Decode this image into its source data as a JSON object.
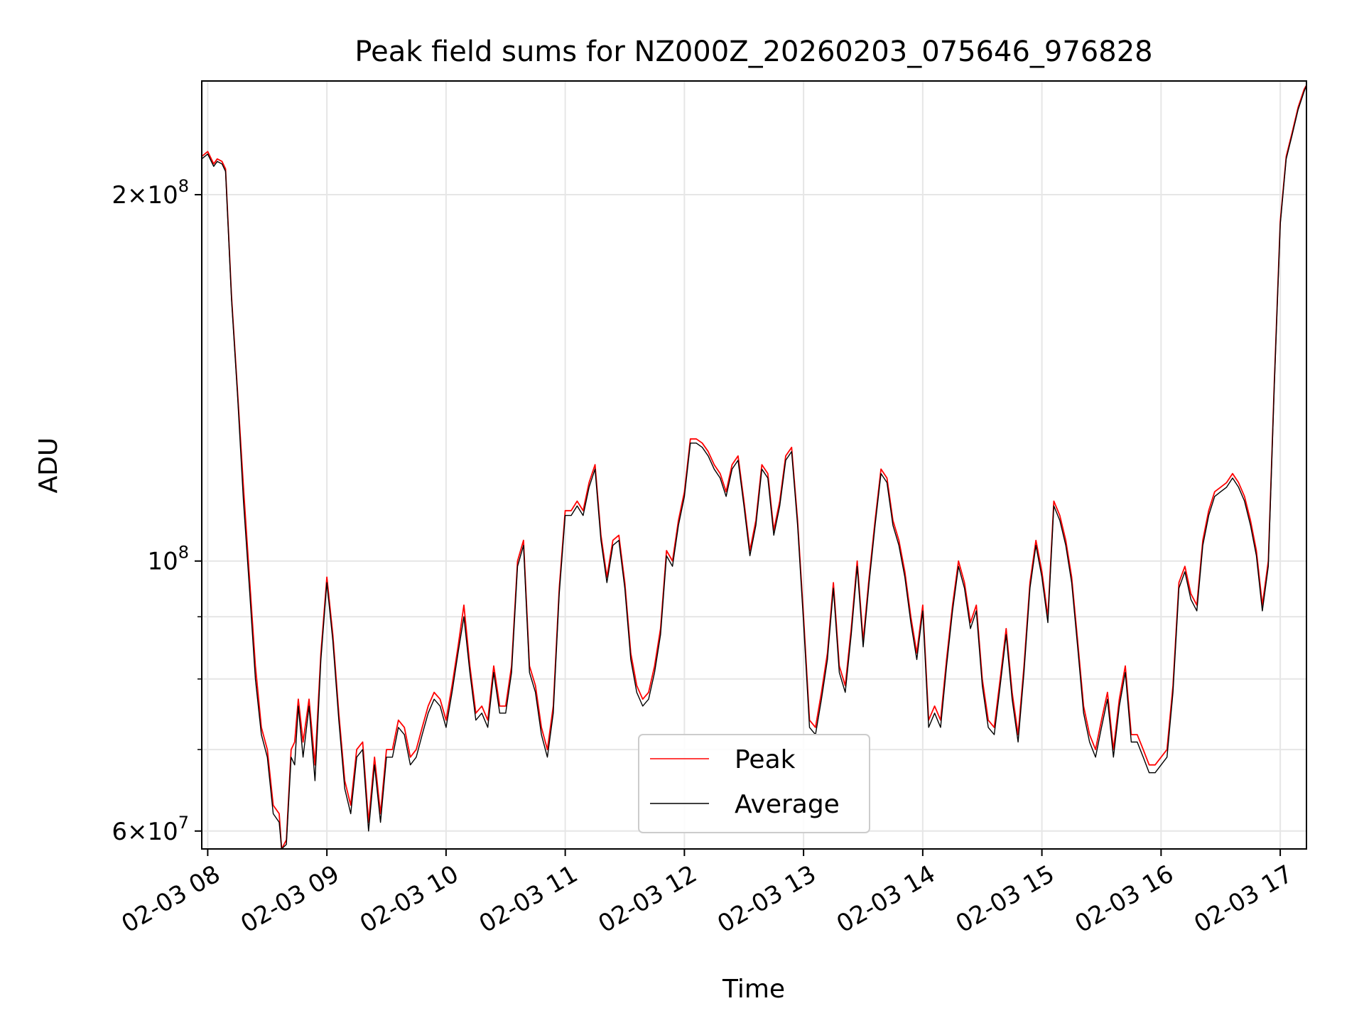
{
  "chart_data": {
    "type": "line",
    "title": "Peak field sums for NZ000Z_20260203_075646_976828",
    "xlabel": "Time",
    "ylabel": "ADU",
    "yscale": "log",
    "xlim": [
      7.95,
      17.22
    ],
    "ylim": [
      58000000,
      248000000
    ],
    "grid": true,
    "legend_position": "lower-center",
    "x_ticks": [
      {
        "value": 8,
        "label": "02-03 08"
      },
      {
        "value": 9,
        "label": "02-03 09"
      },
      {
        "value": 10,
        "label": "02-03 10"
      },
      {
        "value": 11,
        "label": "02-03 11"
      },
      {
        "value": 12,
        "label": "02-03 12"
      },
      {
        "value": 13,
        "label": "02-03 13"
      },
      {
        "value": 14,
        "label": "02-03 14"
      },
      {
        "value": 15,
        "label": "02-03 15"
      },
      {
        "value": 16,
        "label": "02-03 16"
      },
      {
        "value": 17,
        "label": "02-03 17"
      }
    ],
    "y_ticks": [
      {
        "value": 60000000,
        "label_base": "6×10",
        "label_exp": "7"
      },
      {
        "value": 100000000,
        "label_base": "10",
        "label_exp": "8"
      },
      {
        "value": 200000000,
        "label_base": "2×10",
        "label_exp": "8"
      }
    ],
    "y_minor_gridlines": [
      70000000,
      80000000,
      90000000
    ],
    "series": [
      {
        "name": "Peak",
        "color": "#ff0000",
        "x": [
          7.95,
          8.0,
          8.05,
          8.08,
          8.12,
          8.15,
          8.2,
          8.25,
          8.3,
          8.35,
          8.4,
          8.45,
          8.5,
          8.55,
          8.6,
          8.62,
          8.66,
          8.7,
          8.73,
          8.76,
          8.8,
          8.85,
          8.9,
          8.95,
          9.0,
          9.05,
          9.1,
          9.15,
          9.2,
          9.25,
          9.3,
          9.35,
          9.4,
          9.45,
          9.5,
          9.55,
          9.6,
          9.65,
          9.7,
          9.75,
          9.8,
          9.85,
          9.9,
          9.95,
          10.0,
          10.05,
          10.1,
          10.15,
          10.2,
          10.25,
          10.3,
          10.35,
          10.4,
          10.45,
          10.5,
          10.55,
          10.6,
          10.65,
          10.7,
          10.75,
          10.8,
          10.85,
          10.9,
          10.95,
          11.0,
          11.05,
          11.1,
          11.15,
          11.2,
          11.25,
          11.3,
          11.35,
          11.4,
          11.45,
          11.5,
          11.55,
          11.6,
          11.65,
          11.7,
          11.75,
          11.8,
          11.85,
          11.9,
          11.95,
          12.0,
          12.05,
          12.1,
          12.15,
          12.2,
          12.25,
          12.3,
          12.35,
          12.4,
          12.45,
          12.5,
          12.55,
          12.6,
          12.65,
          12.7,
          12.75,
          12.8,
          12.85,
          12.9,
          12.95,
          13.0,
          13.05,
          13.1,
          13.15,
          13.2,
          13.25,
          13.3,
          13.35,
          13.4,
          13.45,
          13.5,
          13.55,
          13.6,
          13.65,
          13.7,
          13.75,
          13.8,
          13.85,
          13.9,
          13.95,
          14.0,
          14.05,
          14.1,
          14.15,
          14.2,
          14.25,
          14.3,
          14.35,
          14.4,
          14.45,
          14.5,
          14.55,
          14.6,
          14.65,
          14.7,
          14.75,
          14.8,
          14.85,
          14.9,
          14.95,
          15.0,
          15.05,
          15.1,
          15.15,
          15.2,
          15.25,
          15.3,
          15.35,
          15.4,
          15.45,
          15.5,
          15.55,
          15.6,
          15.65,
          15.7,
          15.75,
          15.8,
          15.85,
          15.9,
          15.95,
          16.0,
          16.05,
          16.1,
          16.15,
          16.2,
          16.25,
          16.3,
          16.35,
          16.4,
          16.45,
          16.5,
          16.55,
          16.6,
          16.65,
          16.7,
          16.75,
          16.8,
          16.85,
          16.9,
          16.95,
          17.0,
          17.05,
          17.1,
          17.15,
          17.2,
          17.22
        ],
        "values": [
          215000000,
          217000000,
          212000000,
          214000000,
          213000000,
          210000000,
          165000000,
          138000000,
          115000000,
          97000000,
          82000000,
          73000000,
          70000000,
          63000000,
          62000000,
          58000000,
          59000000,
          70000000,
          71000000,
          77000000,
          71000000,
          77000000,
          68000000,
          84000000,
          97000000,
          87000000,
          75000000,
          66000000,
          63000000,
          70000000,
          71000000,
          61000000,
          69000000,
          62000000,
          70000000,
          70000000,
          74000000,
          73000000,
          69000000,
          70000000,
          73000000,
          76000000,
          78000000,
          77000000,
          74000000,
          79000000,
          85000000,
          92000000,
          82000000,
          75000000,
          76000000,
          74000000,
          82000000,
          76000000,
          76000000,
          82000000,
          100000000,
          104000000,
          82000000,
          79000000,
          73000000,
          70000000,
          76000000,
          95000000,
          110000000,
          110000000,
          112000000,
          110000000,
          116000000,
          120000000,
          105000000,
          97000000,
          104000000,
          105000000,
          96000000,
          84000000,
          79000000,
          77000000,
          78000000,
          82000000,
          88000000,
          102000000,
          100000000,
          108000000,
          114000000,
          126000000,
          126000000,
          125000000,
          123000000,
          120000000,
          118000000,
          114000000,
          120000000,
          122000000,
          112000000,
          102000000,
          108000000,
          120000000,
          118000000,
          106000000,
          112000000,
          122000000,
          124000000,
          108000000,
          90000000,
          74000000,
          73000000,
          78000000,
          84000000,
          96000000,
          82000000,
          79000000,
          88000000,
          100000000,
          86000000,
          97000000,
          108000000,
          119000000,
          117000000,
          108000000,
          104000000,
          98000000,
          90000000,
          84000000,
          92000000,
          74000000,
          76000000,
          74000000,
          83000000,
          92000000,
          100000000,
          96000000,
          89000000,
          92000000,
          80000000,
          74000000,
          73000000,
          80000000,
          88000000,
          78000000,
          72000000,
          82000000,
          96000000,
          104000000,
          98000000,
          90000000,
          112000000,
          109000000,
          104000000,
          97000000,
          86000000,
          76000000,
          72000000,
          70000000,
          74000000,
          78000000,
          70000000,
          77000000,
          82000000,
          72000000,
          72000000,
          70000000,
          68000000,
          68000000,
          69000000,
          70000000,
          79000000,
          96000000,
          99000000,
          94000000,
          92000000,
          104000000,
          110000000,
          114000000,
          115000000,
          116000000,
          118000000,
          116000000,
          113000000,
          108000000,
          102000000,
          92000000,
          100000000,
          140000000,
          190000000,
          215000000,
          225000000,
          236000000,
          244000000,
          246000000
        ]
      },
      {
        "name": "Average",
        "color": "#000000",
        "x": [
          7.95,
          8.0,
          8.05,
          8.08,
          8.12,
          8.15,
          8.2,
          8.25,
          8.3,
          8.35,
          8.4,
          8.45,
          8.5,
          8.55,
          8.6,
          8.62,
          8.66,
          8.7,
          8.73,
          8.76,
          8.8,
          8.85,
          8.9,
          8.95,
          9.0,
          9.05,
          9.1,
          9.15,
          9.2,
          9.25,
          9.3,
          9.35,
          9.4,
          9.45,
          9.5,
          9.55,
          9.6,
          9.65,
          9.7,
          9.75,
          9.8,
          9.85,
          9.9,
          9.95,
          10.0,
          10.05,
          10.1,
          10.15,
          10.2,
          10.25,
          10.3,
          10.35,
          10.4,
          10.45,
          10.5,
          10.55,
          10.6,
          10.65,
          10.7,
          10.75,
          10.8,
          10.85,
          10.9,
          10.95,
          11.0,
          11.05,
          11.1,
          11.15,
          11.2,
          11.25,
          11.3,
          11.35,
          11.4,
          11.45,
          11.5,
          11.55,
          11.6,
          11.65,
          11.7,
          11.75,
          11.8,
          11.85,
          11.9,
          11.95,
          12.0,
          12.05,
          12.1,
          12.15,
          12.2,
          12.25,
          12.3,
          12.35,
          12.4,
          12.45,
          12.5,
          12.55,
          12.6,
          12.65,
          12.7,
          12.75,
          12.8,
          12.85,
          12.9,
          12.95,
          13.0,
          13.05,
          13.1,
          13.15,
          13.2,
          13.25,
          13.3,
          13.35,
          13.4,
          13.45,
          13.5,
          13.55,
          13.6,
          13.65,
          13.7,
          13.75,
          13.8,
          13.85,
          13.9,
          13.95,
          14.0,
          14.05,
          14.1,
          14.15,
          14.2,
          14.25,
          14.3,
          14.35,
          14.4,
          14.45,
          14.5,
          14.55,
          14.6,
          14.65,
          14.7,
          14.75,
          14.8,
          14.85,
          14.9,
          14.95,
          15.0,
          15.05,
          15.1,
          15.15,
          15.2,
          15.25,
          15.3,
          15.35,
          15.4,
          15.45,
          15.5,
          15.55,
          15.6,
          15.65,
          15.7,
          15.75,
          15.8,
          15.85,
          15.9,
          15.95,
          16.0,
          16.05,
          16.1,
          16.15,
          16.2,
          16.25,
          16.3,
          16.35,
          16.4,
          16.45,
          16.5,
          16.55,
          16.6,
          16.65,
          16.7,
          16.75,
          16.8,
          16.85,
          16.9,
          16.95,
          17.0,
          17.05,
          17.1,
          17.15,
          17.2,
          17.22
        ],
        "values": [
          214000000,
          216000000,
          211000000,
          213000000,
          212000000,
          209000000,
          164000000,
          137000000,
          112000000,
          95000000,
          80000000,
          72000000,
          69000000,
          62000000,
          61000000,
          58000000,
          58500000,
          69000000,
          68000000,
          76000000,
          69000000,
          76000000,
          66000000,
          83000000,
          96000000,
          86000000,
          74000000,
          65000000,
          62000000,
          69000000,
          70000000,
          60000000,
          68000000,
          61000000,
          69000000,
          69000000,
          73000000,
          72000000,
          68000000,
          69000000,
          72000000,
          75000000,
          77000000,
          76000000,
          73000000,
          78000000,
          84000000,
          90000000,
          81000000,
          74000000,
          75000000,
          73000000,
          81000000,
          75000000,
          75000000,
          81000000,
          99000000,
          103000000,
          81000000,
          78000000,
          72000000,
          69000000,
          75000000,
          94000000,
          109000000,
          109000000,
          111000000,
          109000000,
          115000000,
          119000000,
          104000000,
          96000000,
          103000000,
          104000000,
          95000000,
          83000000,
          78000000,
          76000000,
          77000000,
          81000000,
          87000000,
          101000000,
          99000000,
          107000000,
          113000000,
          125000000,
          125000000,
          124000000,
          122000000,
          119000000,
          117000000,
          113000000,
          119000000,
          121000000,
          111000000,
          101000000,
          107000000,
          119000000,
          117000000,
          105000000,
          111000000,
          121000000,
          123000000,
          107000000,
          89000000,
          73000000,
          72000000,
          77000000,
          83000000,
          95000000,
          81000000,
          78000000,
          87000000,
          99000000,
          85000000,
          96000000,
          107000000,
          118000000,
          116000000,
          107000000,
          103000000,
          97000000,
          89000000,
          83000000,
          91000000,
          73000000,
          75000000,
          73000000,
          82000000,
          91000000,
          99000000,
          95000000,
          88000000,
          91000000,
          79000000,
          73000000,
          72000000,
          79000000,
          87000000,
          77000000,
          71000000,
          81000000,
          95000000,
          103000000,
          97000000,
          89000000,
          111000000,
          108000000,
          103000000,
          96000000,
          85000000,
          75000000,
          71000000,
          69000000,
          73000000,
          77000000,
          69000000,
          76000000,
          81000000,
          71000000,
          71000000,
          69000000,
          67000000,
          67000000,
          68000000,
          69000000,
          78000000,
          95000000,
          98000000,
          93000000,
          91000000,
          103000000,
          109000000,
          113000000,
          114000000,
          115000000,
          117000000,
          115000000,
          112000000,
          107000000,
          101000000,
          91000000,
          99000000,
          139000000,
          189000000,
          214000000,
          224000000,
          235000000,
          243000000,
          246000000
        ]
      }
    ]
  }
}
